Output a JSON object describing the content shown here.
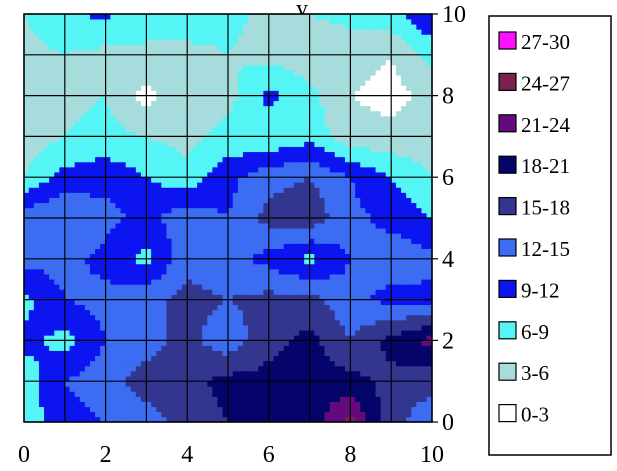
{
  "chart_data": {
    "type": "heatmap",
    "subtype": "filled-contour",
    "title_partial": "y",
    "x": [
      0,
      1,
      2,
      3,
      4,
      5,
      6,
      7,
      8,
      9,
      10
    ],
    "y": [
      0,
      1,
      2,
      3,
      4,
      5,
      6,
      7,
      8,
      9,
      10
    ],
    "xlim": [
      0,
      10
    ],
    "ylim": [
      0,
      10
    ],
    "x_ticks": [
      "0",
      "2",
      "4",
      "6",
      "8",
      "10"
    ],
    "y_ticks": [
      "0",
      "2",
      "4",
      "6",
      "8",
      "10"
    ],
    "y_axis_side": "right",
    "grid": true,
    "legend_position": "right",
    "bands": [
      {
        "label": "0-3",
        "min": 0,
        "max": 3,
        "color": "#ffffff"
      },
      {
        "label": "3-6",
        "min": 3,
        "max": 6,
        "color": "#a6dcdc"
      },
      {
        "label": "6-9",
        "min": 6,
        "max": 9,
        "color": "#55f5f5"
      },
      {
        "label": "9-12",
        "min": 9,
        "max": 12,
        "color": "#0c14f0"
      },
      {
        "label": "12-15",
        "min": 12,
        "max": 15,
        "color": "#3c6cf2"
      },
      {
        "label": "15-18",
        "min": 15,
        "max": 18,
        "color": "#33368f"
      },
      {
        "label": "18-21",
        "min": 18,
        "max": 21,
        "color": "#04046b"
      },
      {
        "label": "21-24",
        "min": 21,
        "max": 24,
        "color": "#650a7c"
      },
      {
        "label": "24-27",
        "min": 24,
        "max": 27,
        "color": "#7a2150"
      },
      {
        "label": "27-30",
        "min": 27,
        "max": 30,
        "color": "#ff10ff"
      }
    ],
    "z": [
      [
        8,
        10,
        12,
        14,
        16,
        18,
        19,
        19,
        25,
        16,
        13
      ],
      [
        7,
        12,
        14,
        16,
        17,
        19,
        19,
        20,
        19,
        17,
        16
      ],
      [
        10,
        8,
        12,
        14,
        16,
        13,
        17,
        19,
        15,
        19,
        22
      ],
      [
        8,
        12,
        13,
        14,
        16,
        15,
        16,
        16,
        13,
        11,
        11
      ],
      [
        13,
        13,
        11,
        8,
        14,
        13,
        11,
        8,
        12,
        14,
        13
      ],
      [
        14,
        15,
        13,
        11,
        14,
        12,
        16,
        17,
        13,
        11,
        9
      ],
      [
        6,
        10,
        11,
        9,
        7,
        11,
        14,
        15,
        12,
        9,
        6
      ],
      [
        4,
        6,
        7,
        6,
        5,
        7,
        6,
        8,
        4,
        4,
        4
      ],
      [
        4,
        5,
        6,
        2,
        5,
        5,
        10,
        7,
        3,
        2,
        4
      ],
      [
        5,
        6,
        5,
        6,
        5,
        6,
        5,
        4,
        4,
        3,
        7
      ],
      [
        6,
        8,
        10,
        6,
        8,
        7,
        5,
        6,
        7,
        8,
        12
      ]
    ]
  }
}
